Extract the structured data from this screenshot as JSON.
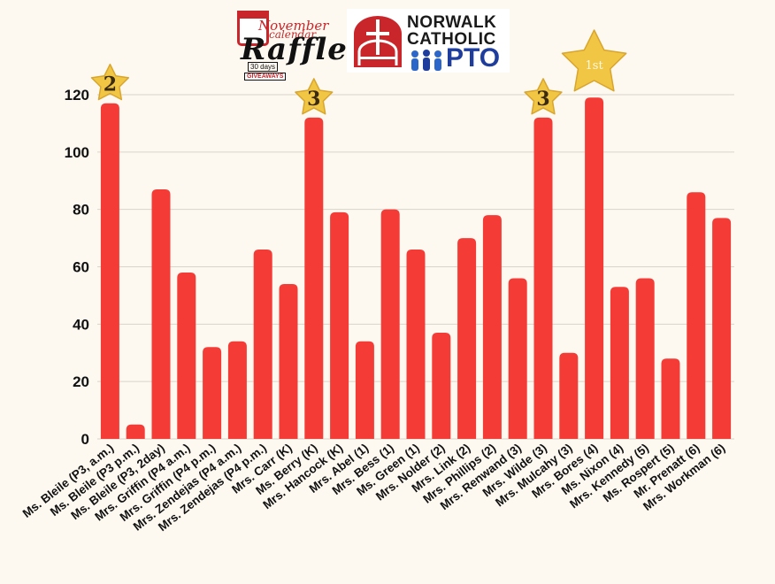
{
  "logos": {
    "raffle": {
      "line1": "November",
      "line2": "calendar",
      "line3": "Raffle",
      "line4": "30 days",
      "line5": "GIVEAWAYS"
    },
    "pto": {
      "line1": "NORWALK",
      "line2": "CATHOLIC",
      "line3": "PTO"
    }
  },
  "colors": {
    "bar": "#f43b36",
    "grid": "#d8d4cc",
    "background": "#fdf9f1",
    "star": "#f1c645"
  },
  "chart_data": {
    "type": "bar",
    "title": "",
    "xlabel": "",
    "ylabel": "",
    "ylim": [
      0,
      120
    ],
    "yticks": [
      0,
      20,
      40,
      60,
      80,
      100,
      120
    ],
    "grid": true,
    "legend": "none",
    "categories": [
      "Ms. Bleile (P3, a.m.)",
      "Ms. Bleile (P3 p.m.)",
      "Ms. Bleile (P3, 2day)",
      "Mrs. Griffin (P4 a.m.)",
      "Mrs. Griffin (P4 p.m.)",
      "Mrs. Zendejas (P4 a.m.)",
      "Mrs. Zendejas (P4 p.m.)",
      "Mrs. Carr (K)",
      "Ms. Berry (K)",
      "Mrs. Hancock (K)",
      "Mrs. Abel (1)",
      "Mrs. Bess (1)",
      "Ms. Green (1)",
      "Mrs. Nolder (2)",
      "Mrs. Link (2)",
      "Mrs. Phillips (2)",
      "Mrs. Renwand (3)",
      "Mrs. Wilde (3)",
      "Mrs. Mulcahy (3)",
      "Mrs. Bores (4)",
      "Ms. Nixon (4)",
      "Mrs. Kennedy (5)",
      "Ms. Rospert (5)",
      "Mr. Prenatt (6)",
      "Mrs. Workman (6)"
    ],
    "values": [
      117,
      5,
      87,
      58,
      32,
      34,
      66,
      54,
      112,
      79,
      34,
      80,
      66,
      37,
      70,
      78,
      56,
      112,
      30,
      119,
      53,
      56,
      28,
      86,
      77
    ],
    "annotations": [
      {
        "category_index": 0,
        "label": "2",
        "kind": "star"
      },
      {
        "category_index": 8,
        "label": "3",
        "kind": "star"
      },
      {
        "category_index": 17,
        "label": "3",
        "kind": "star"
      },
      {
        "category_index": 19,
        "label": "1st",
        "kind": "big-star"
      }
    ]
  }
}
